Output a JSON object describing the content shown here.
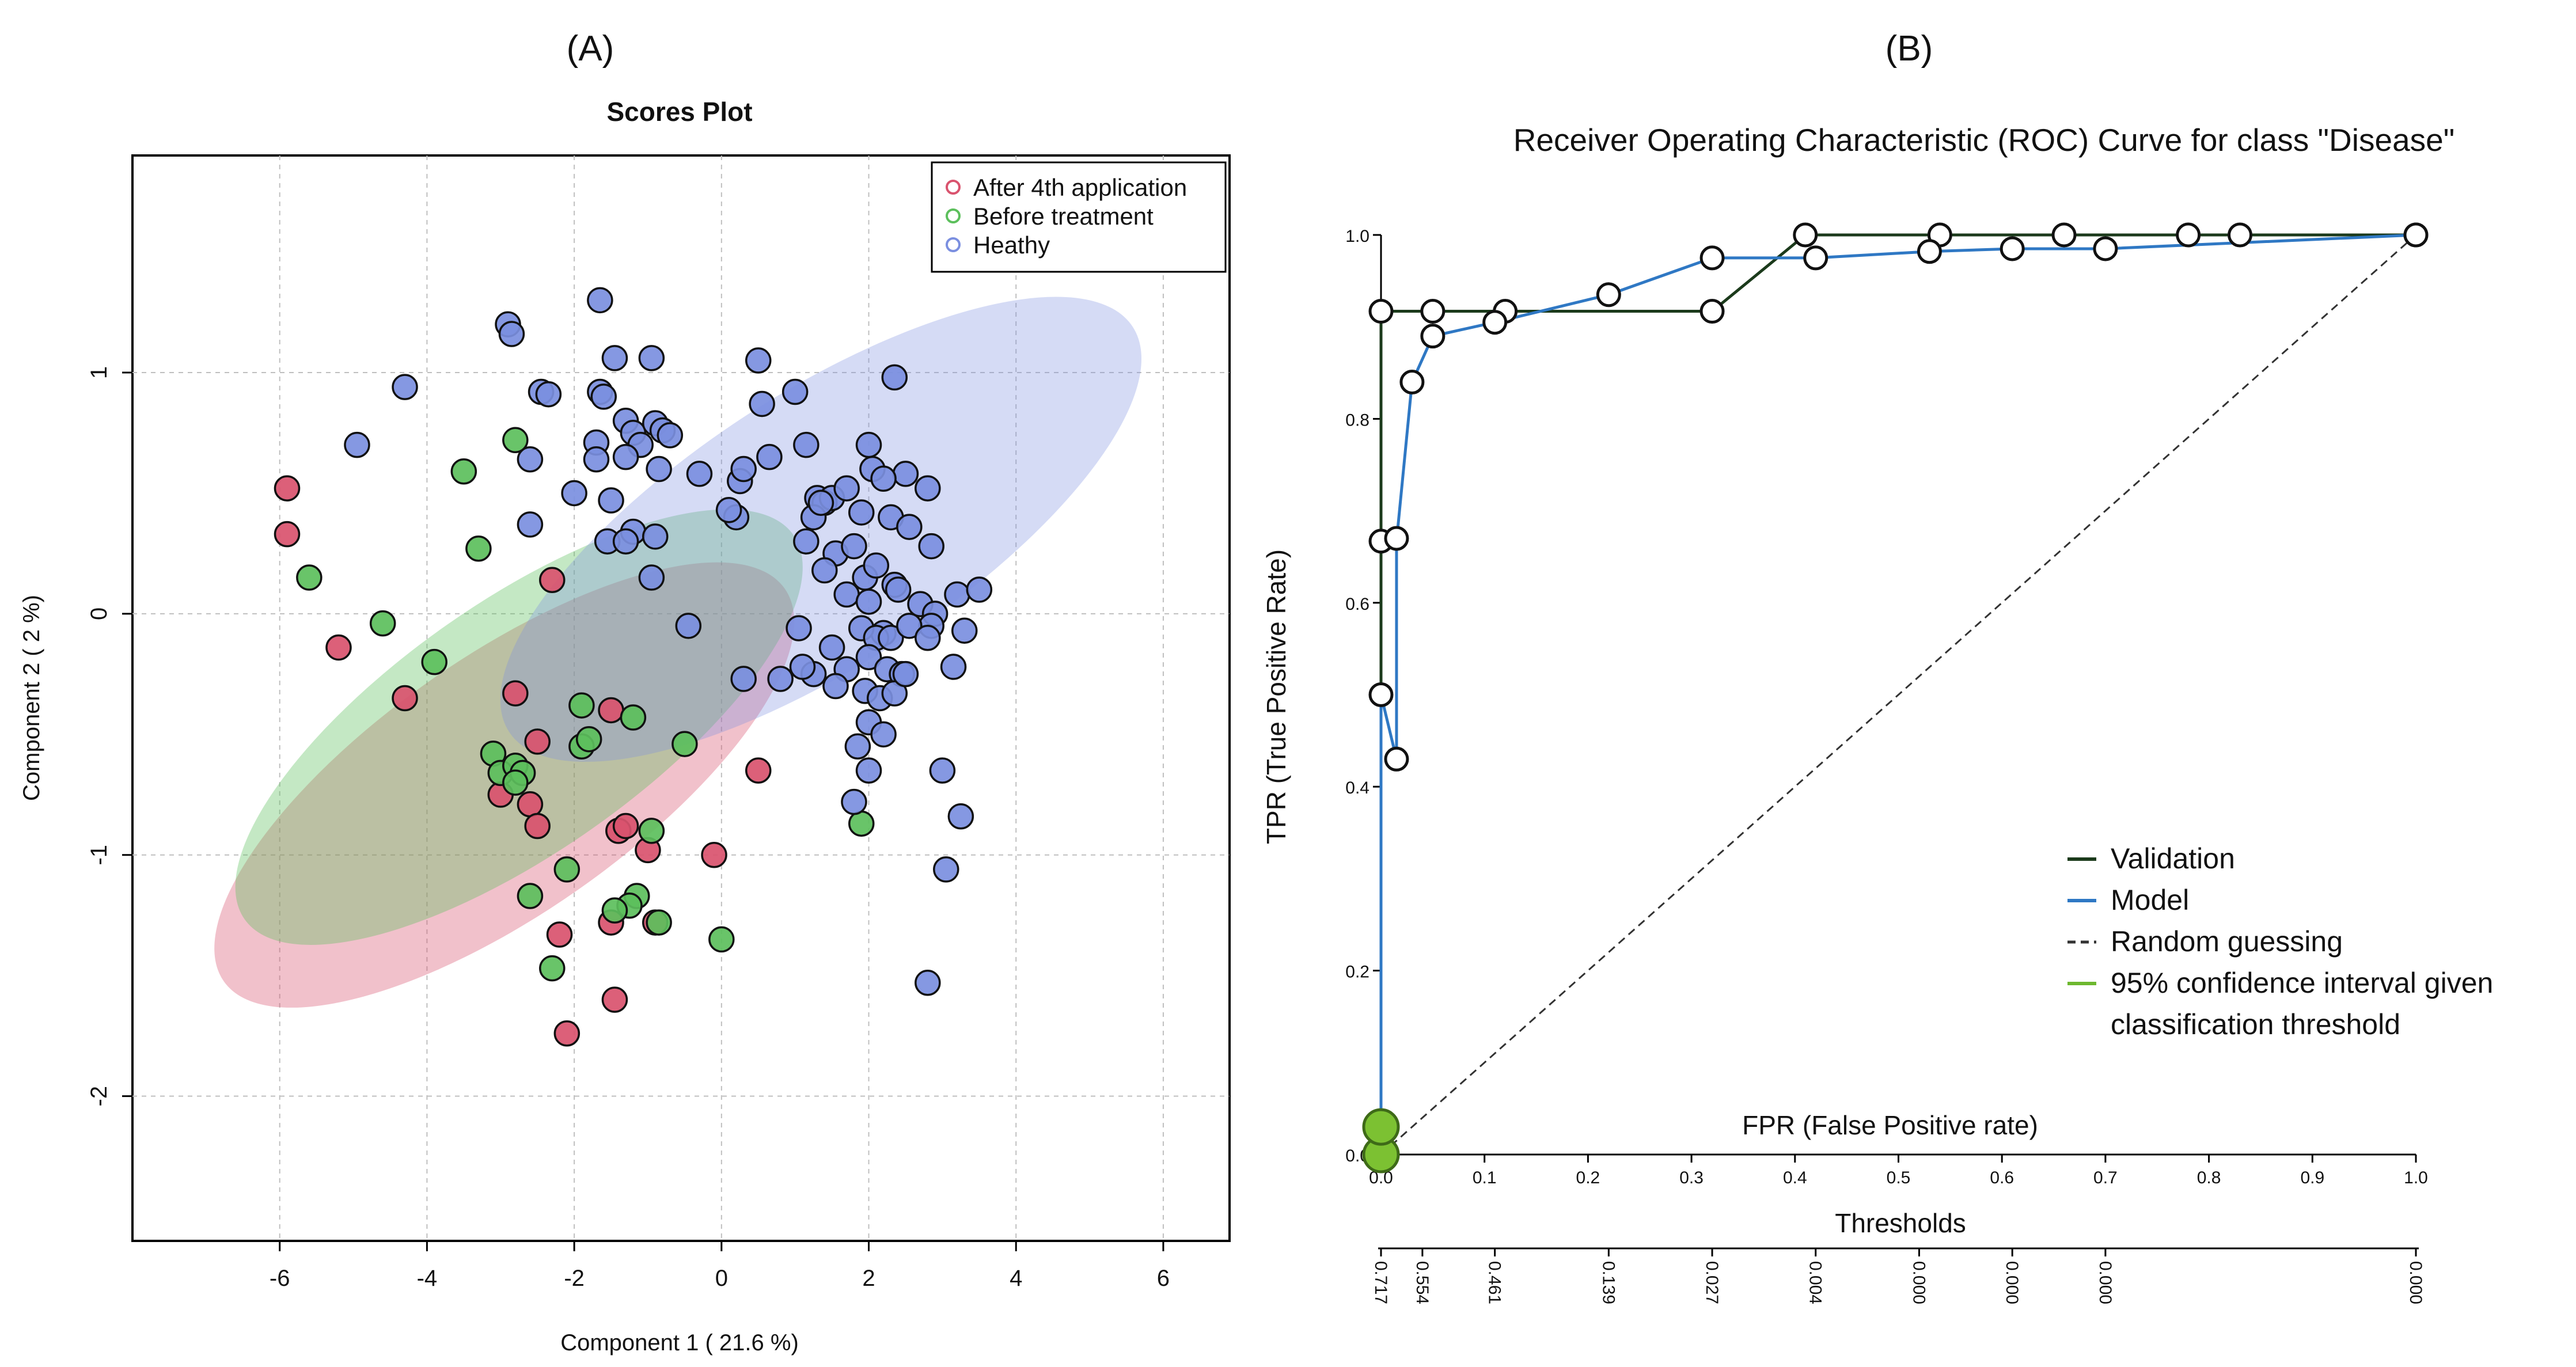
{
  "chart_data": [
    {
      "panel_label": "(A)",
      "type": "scatter",
      "title": "Scores Plot",
      "xlabel": "Component 1 ( 21.6 %)",
      "ylabel": "Component 2 ( 2 %)",
      "xlim": [
        -8.0,
        6.9
      ],
      "ylim": [
        -2.6,
        1.9
      ],
      "xticks": [
        -6,
        -4,
        -2,
        0,
        2,
        4,
        6
      ],
      "yticks": [
        1,
        0,
        -1,
        -2
      ],
      "grid": true,
      "legend_position": "top-right",
      "series": [
        {
          "name": "After 4th application",
          "color": "#d9536e",
          "ellipse": {
            "cx": -2.95,
            "cy": -0.71,
            "rx": 4.65,
            "ry": 1.74,
            "angle_deg": -35
          },
          "points": [
            [
              -5.9,
              0.52
            ],
            [
              -5.9,
              0.33
            ],
            [
              -5.2,
              -0.14
            ],
            [
              -4.3,
              -0.35
            ],
            [
              -2.3,
              0.14
            ],
            [
              -2.8,
              -0.33
            ],
            [
              -2.5,
              -0.53
            ],
            [
              -2.6,
              -0.79
            ],
            [
              -2.5,
              -0.88
            ],
            [
              -3.0,
              -0.75
            ],
            [
              -1.5,
              -0.4
            ],
            [
              -1.4,
              -0.9
            ],
            [
              -1.3,
              -0.88
            ],
            [
              -1.0,
              -0.98
            ],
            [
              -0.1,
              -1.0
            ],
            [
              0.5,
              -0.65
            ],
            [
              -2.2,
              -1.33
            ],
            [
              -1.5,
              -1.28
            ],
            [
              -0.9,
              -1.28
            ],
            [
              -2.1,
              -1.74
            ],
            [
              -1.45,
              -1.6
            ]
          ]
        },
        {
          "name": "Before treatment",
          "color": "#5cbf5c",
          "ellipse": {
            "cx": -2.75,
            "cy": -0.47,
            "rx": 4.55,
            "ry": 1.7,
            "angle_deg": -35
          },
          "points": [
            [
              -5.6,
              0.15
            ],
            [
              -4.6,
              -0.04
            ],
            [
              -3.9,
              -0.2
            ],
            [
              -3.5,
              0.59
            ],
            [
              -3.3,
              0.27
            ],
            [
              -2.8,
              0.72
            ],
            [
              -3.1,
              -0.58
            ],
            [
              -3.0,
              -0.66
            ],
            [
              -2.8,
              -0.63
            ],
            [
              -2.7,
              -0.66
            ],
            [
              -2.8,
              -0.7
            ],
            [
              -1.9,
              -0.38
            ],
            [
              -1.9,
              -0.55
            ],
            [
              -1.8,
              -0.52
            ],
            [
              -1.2,
              -0.43
            ],
            [
              -0.5,
              -0.54
            ],
            [
              -2.1,
              -1.06
            ],
            [
              -2.6,
              -1.17
            ],
            [
              -1.15,
              -1.17
            ],
            [
              -1.25,
              -1.21
            ],
            [
              -0.95,
              -0.9
            ],
            [
              -0.85,
              -1.28
            ],
            [
              -1.45,
              -1.23
            ],
            [
              0.0,
              -1.35
            ],
            [
              -2.3,
              -1.47
            ],
            [
              1.9,
              -0.87
            ]
          ]
        },
        {
          "name": "Heathy",
          "color": "#7b8fe0",
          "ellipse": {
            "cx": 1.35,
            "cy": 0.35,
            "rx": 5.05,
            "ry": 1.85,
            "angle_deg": -33
          },
          "points": [
            [
              -2.9,
              1.2
            ],
            [
              -2.85,
              1.16
            ],
            [
              -1.65,
              1.3
            ],
            [
              -1.45,
              1.06
            ],
            [
              -0.95,
              1.06
            ],
            [
              -4.3,
              0.94
            ],
            [
              -4.95,
              0.7
            ],
            [
              -2.45,
              0.92
            ],
            [
              -2.35,
              0.91
            ],
            [
              -1.65,
              0.92
            ],
            [
              -1.6,
              0.9
            ],
            [
              -2.6,
              0.64
            ],
            [
              -1.7,
              0.71
            ],
            [
              -1.7,
              0.64
            ],
            [
              -1.3,
              0.8
            ],
            [
              -1.2,
              0.75
            ],
            [
              -1.1,
              0.7
            ],
            [
              -0.9,
              0.79
            ],
            [
              -0.8,
              0.76
            ],
            [
              -0.7,
              0.74
            ],
            [
              -0.85,
              0.6
            ],
            [
              -1.3,
              0.65
            ],
            [
              -1.5,
              0.47
            ],
            [
              -2.0,
              0.5
            ],
            [
              -1.2,
              0.34
            ],
            [
              -1.55,
              0.3
            ],
            [
              -1.3,
              0.3
            ],
            [
              -0.9,
              0.32
            ],
            [
              -2.6,
              0.37
            ],
            [
              -0.3,
              0.58
            ],
            [
              0.25,
              0.55
            ],
            [
              0.3,
              0.6
            ],
            [
              0.2,
              0.4
            ],
            [
              0.1,
              0.43
            ],
            [
              0.5,
              1.05
            ],
            [
              0.55,
              0.87
            ],
            [
              0.65,
              0.65
            ],
            [
              1.0,
              0.92
            ],
            [
              1.15,
              0.7
            ],
            [
              1.3,
              0.48
            ],
            [
              1.4,
              0.46
            ],
            [
              1.5,
              0.48
            ],
            [
              1.7,
              0.52
            ],
            [
              2.0,
              0.7
            ],
            [
              2.35,
              0.98
            ],
            [
              2.5,
              0.58
            ],
            [
              2.8,
              0.52
            ],
            [
              2.05,
              0.6
            ],
            [
              2.2,
              0.56
            ],
            [
              1.9,
              0.42
            ],
            [
              2.3,
              0.4
            ],
            [
              2.55,
              0.36
            ],
            [
              2.85,
              0.28
            ],
            [
              1.25,
              0.4
            ],
            [
              1.35,
              0.46
            ],
            [
              1.15,
              0.3
            ],
            [
              1.55,
              0.25
            ],
            [
              1.8,
              0.28
            ],
            [
              1.95,
              0.15
            ],
            [
              2.1,
              0.2
            ],
            [
              2.35,
              0.12
            ],
            [
              1.4,
              0.18
            ],
            [
              1.7,
              0.08
            ],
            [
              2.0,
              0.05
            ],
            [
              2.2,
              -0.08
            ],
            [
              2.4,
              0.1
            ],
            [
              2.7,
              0.04
            ],
            [
              2.9,
              0.0
            ],
            [
              3.2,
              0.08
            ],
            [
              3.5,
              0.1
            ],
            [
              3.3,
              -0.07
            ],
            [
              2.85,
              -0.05
            ],
            [
              1.9,
              -0.06
            ],
            [
              2.1,
              -0.1
            ],
            [
              2.3,
              -0.1
            ],
            [
              2.55,
              -0.05
            ],
            [
              2.8,
              -0.1
            ],
            [
              1.05,
              -0.06
            ],
            [
              1.5,
              -0.14
            ],
            [
              2.0,
              -0.18
            ],
            [
              2.25,
              -0.23
            ],
            [
              2.45,
              -0.25
            ],
            [
              1.25,
              -0.25
            ],
            [
              1.7,
              -0.23
            ],
            [
              1.55,
              -0.3
            ],
            [
              1.95,
              -0.32
            ],
            [
              2.15,
              -0.35
            ],
            [
              2.35,
              -0.33
            ],
            [
              2.5,
              -0.25
            ],
            [
              3.15,
              -0.22
            ],
            [
              0.3,
              -0.27
            ],
            [
              0.8,
              -0.27
            ],
            [
              -0.45,
              -0.05
            ],
            [
              -0.95,
              0.15
            ],
            [
              1.1,
              -0.22
            ],
            [
              2.0,
              -0.45
            ],
            [
              2.2,
              -0.5
            ],
            [
              1.85,
              -0.55
            ],
            [
              2.0,
              -0.65
            ],
            [
              3.0,
              -0.65
            ],
            [
              1.8,
              -0.78
            ],
            [
              3.25,
              -0.84
            ],
            [
              3.05,
              -1.06
            ],
            [
              2.8,
              -1.53
            ]
          ]
        }
      ]
    },
    {
      "panel_label": "(B)",
      "type": "line",
      "title": "Receiver Operating Characteristic (ROC) Curve for class \"Disease\"",
      "xlabel": "FPR (False Positive rate)",
      "ylabel": "TPR (True Positive Rate)",
      "secondary_xlabel": "Thresholds",
      "xlim": [
        0,
        1
      ],
      "ylim": [
        0,
        1
      ],
      "xticks": [
        "0.0",
        "0.1",
        "0.2",
        "0.3",
        "0.4",
        "0.5",
        "0.6",
        "0.7",
        "0.8",
        "0.9",
        "1.0"
      ],
      "yticks": [
        "0.0",
        "0.2",
        "0.4",
        "0.6",
        "0.8",
        "1.0"
      ],
      "threshold_ticks": [
        {
          "fpr": 0.0,
          "label": "0.717"
        },
        {
          "fpr": 0.04,
          "label": "0.554"
        },
        {
          "fpr": 0.11,
          "label": "0.461"
        },
        {
          "fpr": 0.22,
          "label": "0.139"
        },
        {
          "fpr": 0.32,
          "label": "0.027"
        },
        {
          "fpr": 0.42,
          "label": "0.004"
        },
        {
          "fpr": 0.52,
          "label": "0.000"
        },
        {
          "fpr": 0.61,
          "label": "0.000"
        },
        {
          "fpr": 0.7,
          "label": "0.000"
        },
        {
          "fpr": 1.0,
          "label": "0.000"
        }
      ],
      "legend_position": "bottom-right",
      "series": [
        {
          "name": "Validation",
          "color": "#1b3a1b",
          "x": [
            0.0,
            0.0,
            0.05,
            0.05,
            0.32,
            0.41,
            1.0
          ],
          "y": [
            0.0,
            0.917,
            0.917,
            0.917,
            0.917,
            1.0,
            1.0
          ],
          "markers": [
            [
              0.0,
              0.917
            ],
            [
              0.05,
              0.917
            ],
            [
              0.12,
              0.917
            ],
            [
              0.32,
              0.917
            ],
            [
              0.41,
              1.0
            ],
            [
              0.54,
              1.0
            ],
            [
              0.66,
              1.0
            ],
            [
              0.78,
              1.0
            ],
            [
              0.83,
              1.0
            ],
            [
              1.0,
              1.0
            ]
          ]
        },
        {
          "name": "Model",
          "color": "#2f78c4",
          "x": [
            0.0,
            0.0,
            0.015,
            0.015,
            0.03,
            0.05,
            0.11,
            0.22,
            0.32,
            0.42,
            0.53,
            0.61,
            0.7,
            1.0
          ],
          "y": [
            0.0,
            0.5,
            0.43,
            0.667,
            0.84,
            0.89,
            0.905,
            0.935,
            0.975,
            0.975,
            0.982,
            0.985,
            0.985,
            1.0
          ],
          "markers": [
            [
              0.0,
              0.5
            ],
            [
              0.0,
              0.667
            ],
            [
              0.015,
              0.43
            ],
            [
              0.015,
              0.67
            ],
            [
              0.03,
              0.84
            ],
            [
              0.05,
              0.89
            ],
            [
              0.11,
              0.905
            ],
            [
              0.22,
              0.935
            ],
            [
              0.32,
              0.975
            ],
            [
              0.42,
              0.975
            ],
            [
              0.53,
              0.982
            ],
            [
              0.61,
              0.985
            ],
            [
              0.7,
              0.985
            ],
            [
              1.0,
              1.0
            ]
          ]
        },
        {
          "name": "Random guessing",
          "color": "#333333",
          "dashed": true,
          "x": [
            0.0,
            1.0
          ],
          "y": [
            0.0,
            1.0
          ]
        },
        {
          "name": "95% confidence interval given classification threshold",
          "legend_lines": [
            "95% confidence interval given",
            "classification threshold"
          ],
          "color": "#6db82f",
          "x": [
            0.0,
            0.0
          ],
          "y": [
            0.0,
            0.03
          ],
          "markers": [
            [
              0.0,
              0.0
            ],
            [
              0.0,
              0.03
            ]
          ]
        }
      ]
    }
  ]
}
